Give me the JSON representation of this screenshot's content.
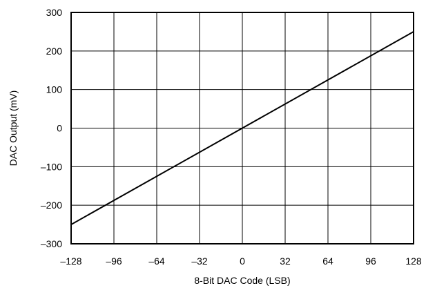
{
  "chart_data": {
    "type": "line",
    "title": "",
    "xlabel": "8-Bit DAC Code (LSB)",
    "ylabel": "DAC Output (mV)",
    "xlim": [
      -128,
      128
    ],
    "ylim": [
      -300,
      300
    ],
    "x_ticks": [
      -128,
      -96,
      -64,
      -32,
      0,
      32,
      64,
      96,
      128
    ],
    "x_tick_labels": [
      "–128",
      "–96",
      "–64",
      "–32",
      "0",
      "32",
      "64",
      "96",
      "128"
    ],
    "y_ticks": [
      300,
      200,
      100,
      0,
      -100,
      -200,
      -300
    ],
    "y_tick_labels": [
      "300",
      "200",
      "100",
      "0",
      "–100",
      "–200",
      "–300"
    ],
    "grid": true,
    "legend": "none",
    "series": [
      {
        "x": [
          -128,
          128
        ],
        "y": [
          -250,
          250
        ],
        "color": "#000000"
      }
    ]
  }
}
